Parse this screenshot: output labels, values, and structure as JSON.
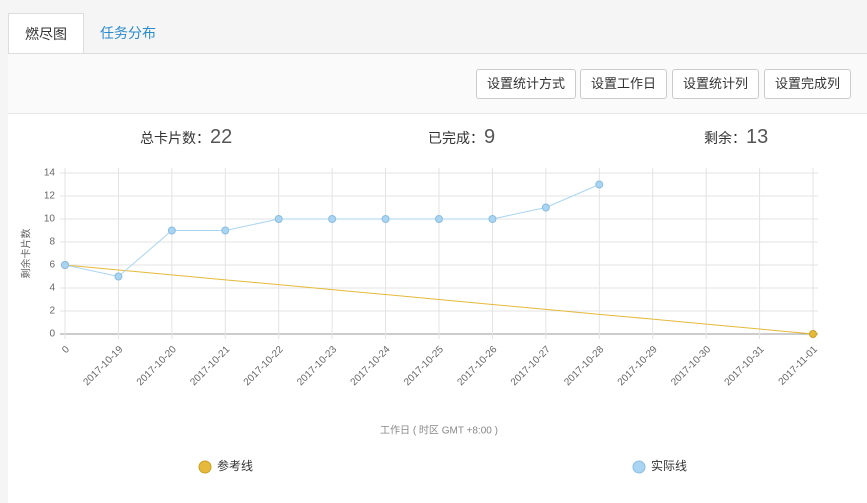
{
  "tabs": [
    "燃尽图",
    "任务分布"
  ],
  "buttons": [
    "设置统计方式",
    "设置工作日",
    "设置统计列",
    "设置完成列"
  ],
  "stats": [
    {
      "label": "总卡片数：",
      "value": 22
    },
    {
      "label": "已完成：",
      "value": 9
    },
    {
      "label": "剩余：",
      "value": 13
    }
  ],
  "chart_data": {
    "type": "line",
    "x_label": "工作日 ( 时区 GMT +8:00 )",
    "y_label": "剩余卡片数",
    "categories": [
      "0",
      "2017-10-19",
      "2017-10-20",
      "2017-10-21",
      "2017-10-22",
      "2017-10-23",
      "2017-10-24",
      "2017-10-25",
      "2017-10-26",
      "2017-10-27",
      "2017-10-28",
      "2017-10-29",
      "2017-10-30",
      "2017-10-31",
      "2017-11-01"
    ],
    "series": [
      {
        "name": "参考线",
        "color": "#e6b93a",
        "values": [
          6,
          5.57,
          5.14,
          4.71,
          4.29,
          3.86,
          3.43,
          3,
          2.57,
          2.14,
          1.71,
          1.29,
          0.86,
          0.43,
          0
        ]
      },
      {
        "name": "实际线",
        "color": "#a9d5f2",
        "values": [
          6,
          5,
          9,
          9,
          10,
          10,
          10,
          10,
          10,
          11,
          13,
          null,
          null,
          null,
          null
        ]
      }
    ],
    "ylim": [
      0,
      14
    ],
    "yticks": [
      0,
      2,
      4,
      6,
      8,
      10,
      12,
      14
    ],
    "grid": true
  }
}
